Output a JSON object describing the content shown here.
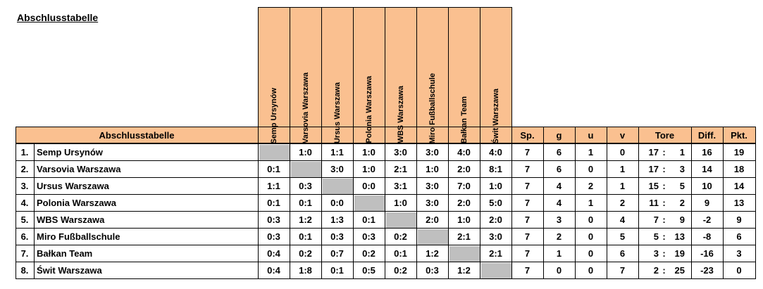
{
  "title": "Abschlusstabelle",
  "header": {
    "table_label": "Abschlusstabelle",
    "teams_short": [
      "Semp Ursynów",
      "Varsovia Warszawa",
      "Ursus Warszawa",
      "Polonia Warszawa",
      "WBS Warszawa",
      "Miro Fußballschule",
      "Bałkan Team",
      "Świt Warszawa"
    ],
    "sp": "Sp.",
    "g": "g",
    "u": "u",
    "v": "v",
    "tore": "Tore",
    "diff": "Diff.",
    "pkt": "Pkt."
  },
  "rows": [
    {
      "rank": "1.",
      "team": "Semp Ursynów",
      "results": [
        "",
        "1:0",
        "1:1",
        "1:0",
        "3:0",
        "3:0",
        "4:0",
        "4:0"
      ],
      "sp": "7",
      "g": "6",
      "u": "1",
      "v": "0",
      "tf": "17",
      "ta": "1",
      "diff": "16",
      "pkt": "19"
    },
    {
      "rank": "2.",
      "team": "Varsovia Warszawa",
      "results": [
        "0:1",
        "",
        "3:0",
        "1:0",
        "2:1",
        "1:0",
        "2:0",
        "8:1"
      ],
      "sp": "7",
      "g": "6",
      "u": "0",
      "v": "1",
      "tf": "17",
      "ta": "3",
      "diff": "14",
      "pkt": "18"
    },
    {
      "rank": "3.",
      "team": "Ursus Warszawa",
      "results": [
        "1:1",
        "0:3",
        "",
        "0:0",
        "3:1",
        "3:0",
        "7:0",
        "1:0"
      ],
      "sp": "7",
      "g": "4",
      "u": "2",
      "v": "1",
      "tf": "15",
      "ta": "5",
      "diff": "10",
      "pkt": "14"
    },
    {
      "rank": "4.",
      "team": "Polonia Warszawa",
      "results": [
        "0:1",
        "0:1",
        "0:0",
        "",
        "1:0",
        "3:0",
        "2:0",
        "5:0"
      ],
      "sp": "7",
      "g": "4",
      "u": "1",
      "v": "2",
      "tf": "11",
      "ta": "2",
      "diff": "9",
      "pkt": "13"
    },
    {
      "rank": "5.",
      "team": "WBS Warszawa",
      "results": [
        "0:3",
        "1:2",
        "1:3",
        "0:1",
        "",
        "2:0",
        "1:0",
        "2:0"
      ],
      "sp": "7",
      "g": "3",
      "u": "0",
      "v": "4",
      "tf": "7",
      "ta": "9",
      "diff": "-2",
      "pkt": "9"
    },
    {
      "rank": "6.",
      "team": "Miro Fußballschule",
      "results": [
        "0:3",
        "0:1",
        "0:3",
        "0:3",
        "0:2",
        "",
        "2:1",
        "3:0"
      ],
      "sp": "7",
      "g": "2",
      "u": "0",
      "v": "5",
      "tf": "5",
      "ta": "13",
      "diff": "-8",
      "pkt": "6"
    },
    {
      "rank": "7.",
      "team": "Bałkan Team",
      "results": [
        "0:4",
        "0:2",
        "0:7",
        "0:2",
        "0:1",
        "1:2",
        "",
        "2:1"
      ],
      "sp": "7",
      "g": "1",
      "u": "0",
      "v": "6",
      "tf": "3",
      "ta": "19",
      "diff": "-16",
      "pkt": "3"
    },
    {
      "rank": "8.",
      "team": "Świt Warszawa",
      "results": [
        "0:4",
        "1:8",
        "0:1",
        "0:5",
        "0:2",
        "0:3",
        "1:2",
        ""
      ],
      "sp": "7",
      "g": "0",
      "u": "0",
      "v": "7",
      "tf": "2",
      "ta": "25",
      "diff": "-23",
      "pkt": "0"
    }
  ],
  "colors": {
    "header_bg": "#FAC090",
    "self_match_bg": "#BFBFBF"
  }
}
